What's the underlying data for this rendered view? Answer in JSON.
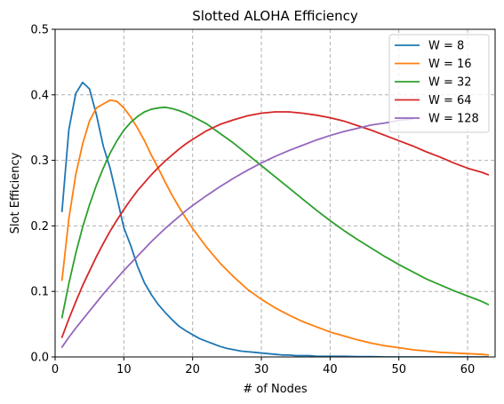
{
  "chart_data": {
    "type": "line",
    "title": "Slotted ALOHA Efficiency",
    "xlabel": "# of Nodes",
    "ylabel": "Slot Efficiency",
    "xlim": [
      0,
      64
    ],
    "ylim": [
      0,
      0.5
    ],
    "xticks": [
      0,
      10,
      20,
      30,
      40,
      50,
      60
    ],
    "yticks": [
      0.0,
      0.1,
      0.2,
      0.3,
      0.4,
      0.5
    ],
    "xtick_labels": [
      "0",
      "10",
      "20",
      "30",
      "40",
      "50",
      "60"
    ],
    "ytick_labels": [
      "0.0",
      "0.1",
      "0.2",
      "0.3",
      "0.4",
      "0.5"
    ],
    "grid": true,
    "legend_position": "top-right",
    "series": [
      {
        "name": "W = 8",
        "color": "#1f77b4",
        "x": [
          1,
          2,
          3,
          4,
          5,
          6,
          7,
          8,
          9,
          10,
          11,
          12,
          13,
          14,
          15,
          16,
          17,
          18,
          19,
          20,
          21,
          22,
          23,
          24,
          25,
          26,
          27,
          28,
          29,
          30,
          31,
          32,
          33,
          34,
          35,
          36,
          37,
          38,
          39,
          40,
          42,
          44,
          46,
          48,
          50,
          52,
          54,
          56,
          58,
          60,
          62,
          63
        ],
        "y": [
          0.222,
          0.347,
          0.402,
          0.419,
          0.409,
          0.37,
          0.322,
          0.288,
          0.243,
          0.197,
          0.17,
          0.138,
          0.113,
          0.095,
          0.08,
          0.068,
          0.057,
          0.047,
          0.04,
          0.034,
          0.028,
          0.024,
          0.02,
          0.016,
          0.013,
          0.011,
          0.009,
          0.008,
          0.007,
          0.006,
          0.005,
          0.004,
          0.003,
          0.003,
          0.002,
          0.002,
          0.002,
          0.001,
          0.001,
          0.001,
          0.001,
          0.0005,
          0.0005,
          0,
          0,
          0,
          0,
          0,
          0,
          0,
          0,
          0
        ]
      },
      {
        "name": "W = 16",
        "color": "#ff7f0e",
        "x": [
          1,
          2,
          3,
          4,
          5,
          6,
          7,
          8,
          9,
          10,
          11,
          12,
          13,
          14,
          15,
          16,
          17,
          18,
          19,
          20,
          22,
          24,
          26,
          28,
          30,
          32,
          34,
          36,
          38,
          40,
          42,
          44,
          46,
          48,
          50,
          52,
          54,
          56,
          58,
          60,
          62,
          63
        ],
        "y": [
          0.117,
          0.211,
          0.278,
          0.325,
          0.36,
          0.38,
          0.386,
          0.392,
          0.39,
          0.38,
          0.366,
          0.349,
          0.33,
          0.308,
          0.288,
          0.267,
          0.247,
          0.229,
          0.212,
          0.196,
          0.168,
          0.143,
          0.122,
          0.103,
          0.088,
          0.075,
          0.064,
          0.054,
          0.046,
          0.038,
          0.032,
          0.026,
          0.021,
          0.017,
          0.014,
          0.011,
          0.009,
          0.007,
          0.006,
          0.005,
          0.004,
          0.003
        ]
      },
      {
        "name": "W = 32",
        "color": "#2ca02c",
        "x": [
          1,
          2,
          3,
          4,
          5,
          6,
          7,
          8,
          9,
          10,
          11,
          12,
          13,
          14,
          15,
          16,
          17,
          18,
          19,
          20,
          22,
          24,
          26,
          28,
          30,
          32,
          34,
          36,
          38,
          40,
          42,
          44,
          46,
          48,
          50,
          52,
          54,
          56,
          58,
          60,
          62,
          63
        ],
        "y": [
          0.06,
          0.112,
          0.158,
          0.198,
          0.232,
          0.262,
          0.288,
          0.311,
          0.33,
          0.346,
          0.358,
          0.367,
          0.374,
          0.378,
          0.38,
          0.381,
          0.379,
          0.376,
          0.372,
          0.367,
          0.356,
          0.341,
          0.326,
          0.309,
          0.292,
          0.275,
          0.258,
          0.241,
          0.224,
          0.208,
          0.193,
          0.179,
          0.166,
          0.153,
          0.141,
          0.13,
          0.119,
          0.11,
          0.101,
          0.093,
          0.085,
          0.08
        ]
      },
      {
        "name": "W = 64",
        "color": "#d62728",
        "x": [
          1,
          2,
          3,
          4,
          5,
          6,
          7,
          8,
          9,
          10,
          11,
          12,
          13,
          14,
          15,
          16,
          17,
          18,
          19,
          20,
          22,
          24,
          26,
          28,
          30,
          32,
          34,
          36,
          38,
          40,
          42,
          44,
          46,
          48,
          50,
          52,
          54,
          56,
          58,
          60,
          62,
          63
        ],
        "y": [
          0.03,
          0.058,
          0.084,
          0.109,
          0.131,
          0.153,
          0.173,
          0.192,
          0.209,
          0.225,
          0.24,
          0.254,
          0.266,
          0.278,
          0.289,
          0.299,
          0.308,
          0.317,
          0.325,
          0.332,
          0.345,
          0.355,
          0.362,
          0.368,
          0.372,
          0.374,
          0.374,
          0.372,
          0.369,
          0.365,
          0.36,
          0.353,
          0.346,
          0.338,
          0.33,
          0.322,
          0.313,
          0.305,
          0.296,
          0.288,
          0.282,
          0.278
        ]
      },
      {
        "name": "W = 128",
        "color": "#9467bd",
        "x": [
          1,
          2,
          3,
          4,
          5,
          6,
          7,
          8,
          9,
          10,
          11,
          12,
          13,
          14,
          15,
          16,
          17,
          18,
          19,
          20,
          22,
          24,
          26,
          28,
          30,
          32,
          34,
          36,
          38,
          40,
          42,
          44,
          46,
          48,
          50,
          52
        ],
        "y": [
          0.015,
          0.03,
          0.044,
          0.057,
          0.07,
          0.083,
          0.096,
          0.108,
          0.12,
          0.132,
          0.143,
          0.154,
          0.165,
          0.176,
          0.186,
          0.196,
          0.205,
          0.214,
          0.223,
          0.231,
          0.246,
          0.26,
          0.273,
          0.285,
          0.296,
          0.306,
          0.315,
          0.323,
          0.331,
          0.338,
          0.344,
          0.349,
          0.354,
          0.357,
          0.361,
          0.363
        ]
      }
    ]
  }
}
